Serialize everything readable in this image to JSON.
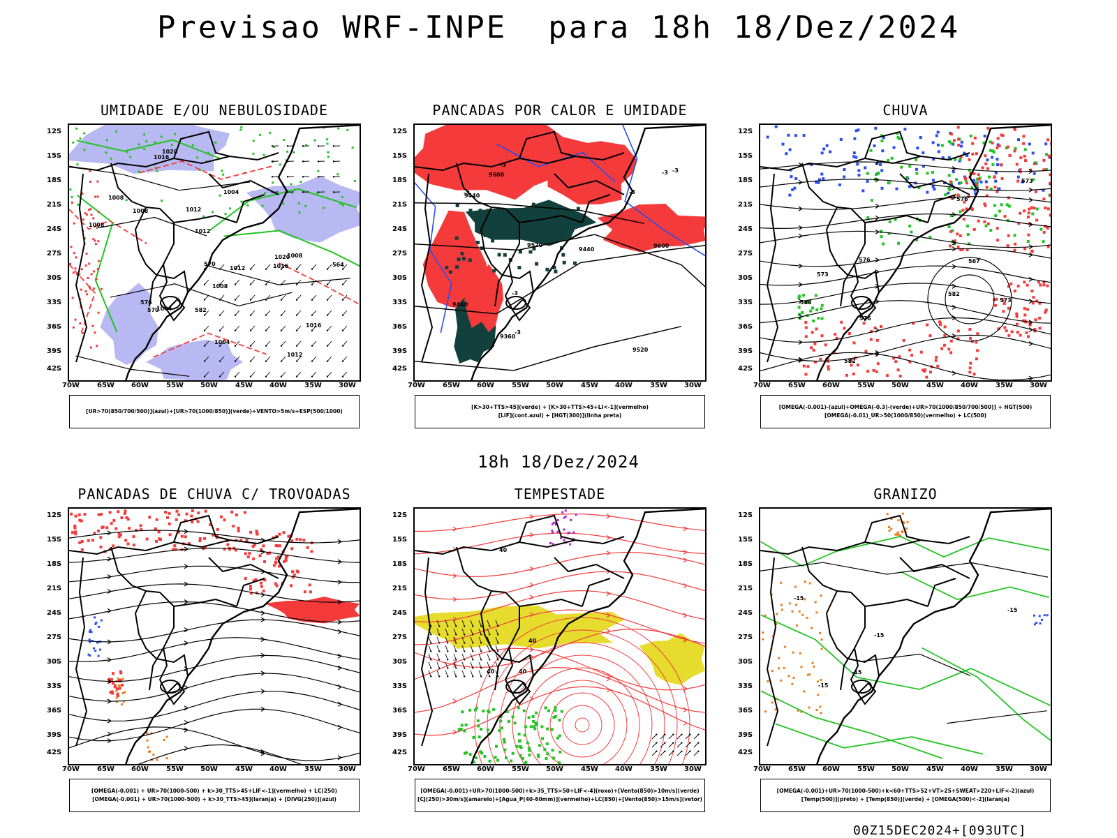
{
  "title": "Previsao WRF-INPE  para 18h 18/Dez/2024",
  "mid_title": "18h 18/Dez/2024",
  "footer": "00Z15DEC2024+[093UTC]",
  "axes": {
    "lat_labels": [
      "12S",
      "15S",
      "18S",
      "21S",
      "24S",
      "27S",
      "30S",
      "33S",
      "36S",
      "39S",
      "42S"
    ],
    "lon_labels": [
      "70W",
      "65W",
      "60W",
      "55W",
      "50W",
      "45W",
      "40W",
      "35W",
      "30W"
    ]
  },
  "colors": {
    "red": "#f43a3a",
    "green": "#22c322",
    "blue": "#2a4df0",
    "lavender": "#b8b8f2",
    "dark_teal": "#12403c",
    "yellow": "#e6dc2e",
    "orange": "#f07a1a",
    "purple": "#b020c8"
  },
  "panels": [
    {
      "title": "UMIDADE E/OU NEBULOSIDADE",
      "legend": [
        "[UR>70(850/700/500)](azul)+[UR>70(1000/850)](verde)+VENTO>5m/s+ESP(500/1000)"
      ],
      "contour_labels": [
        "1008",
        "1008",
        "1012",
        "1016",
        "1004",
        "1004",
        "1008",
        "1012",
        "1016",
        "1016",
        "1020",
        "1020",
        "1012",
        "1008",
        "1008",
        "1004",
        "1012",
        "570",
        "576",
        "582",
        "564",
        "570"
      ]
    },
    {
      "title": "PANCADAS POR CALOR E UMIDADE",
      "legend": [
        "[K>30+TTS>45](verde) + [K>30+TTS>45+LI<-1](vermelho)",
        "[LIF](cont.azul) + [HGT(300)](linha preta)"
      ],
      "contour_labels": [
        "9600",
        "9600",
        "9520",
        "9520",
        "9440",
        "9440",
        "9440",
        "9360",
        "-3",
        "-3",
        "-3",
        "-3",
        "-3",
        "-3",
        "-3"
      ]
    },
    {
      "title": "CHUVA",
      "legend": [
        "[OMEGA(-0.001)-(azul)+OMEGA(-0.3)-(verde)+UR>70(1000/850/700/500)] + HGT(500)",
        "[OMEGA(-0.01)_UR>50(1000/850)(vermelho) + LC(500)"
      ],
      "contour_labels": [
        "582",
        "582",
        "576",
        "576",
        "573",
        "576",
        "573",
        "573",
        "567",
        "588"
      ]
    },
    {
      "title": "PANCADAS DE CHUVA C/ TROVOADAS",
      "legend": [
        "[OMEGA(-0.001) + UR>70(1000-500) + k>30_TTS>45+LIF<-1](vermelho) + LC(250)",
        "[OMEGA(-0.001) + UR>70(1000-500) + k>30_TTS>45](laranja) + [DIVG(250)](azul)"
      ],
      "contour_labels": []
    },
    {
      "title": "TEMPESTADE",
      "legend": [
        "[OMEGA(-0.001)+UR>70(1000-500)+k>35_TTS>50+LIF<-4](roxo)+[Vento(850)>10m/s](verde)",
        "[CJ(250)>30m/s](amarelo)+[Agua_P(40-60mm)](vermelho)+LC(850)+[Vento(850)>15m/s](vetor)"
      ],
      "contour_labels": [
        "40",
        "40",
        "40",
        "40"
      ]
    },
    {
      "title": "GRANIZO",
      "legend": [
        "[OMEGA(-0.001)+UR>70(1000-500)+k<60+TTS>52+VT>25+SWEAT>220+LIF<-2](azul)",
        "[Temp(500)](preto) + [Temp(850)](verde) + [OMEGA(500)<-2](laranja)"
      ],
      "contour_labels": [
        "-15",
        "-15",
        "-15",
        "-15",
        "-15"
      ]
    }
  ]
}
